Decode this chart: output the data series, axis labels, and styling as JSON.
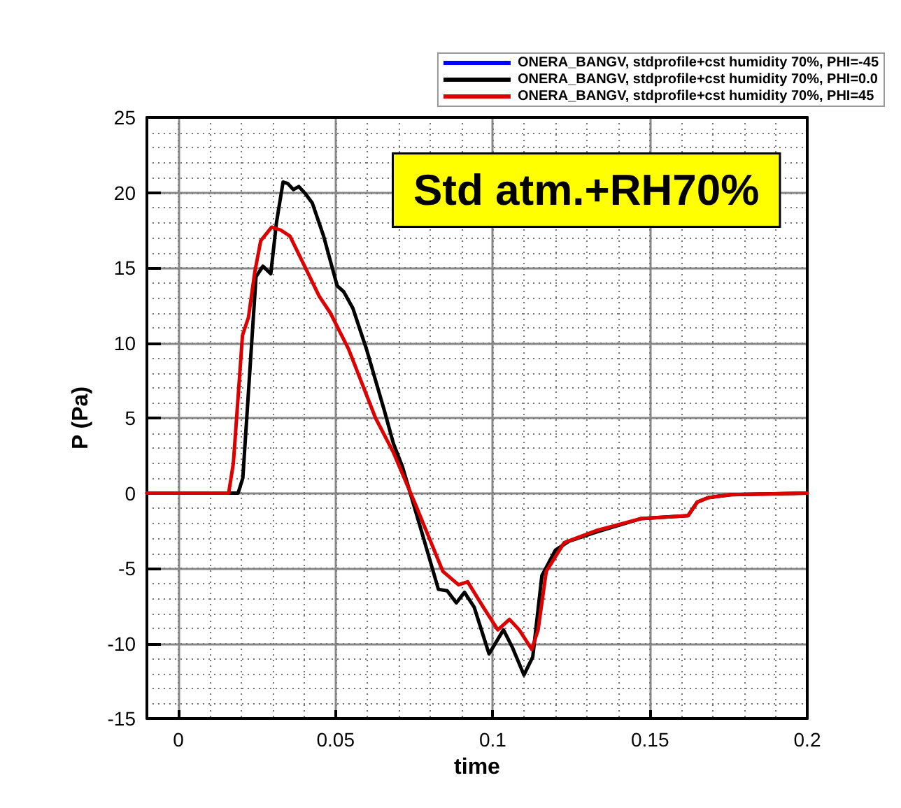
{
  "chart_data": {
    "type": "line",
    "xlabel": "time",
    "ylabel": "P (Pa)",
    "annotations": [
      "Std atm.+RH70%"
    ],
    "xlim": [
      -0.01,
      0.2
    ],
    "xticks": [
      0,
      0.05,
      0.1,
      0.15,
      0.2
    ],
    "ylim": [
      -15,
      25
    ],
    "yticks": [
      -15,
      -10,
      -5,
      0,
      5,
      10,
      15,
      20,
      25
    ],
    "grid": true,
    "legend": "top right",
    "marker": "none",
    "line_style": "solid",
    "series": [
      {
        "name": "ONERA_BANGV, stdprofile+cst humidity 70%, PHI=-45",
        "color": "#0000ff"
      },
      {
        "name": "ONERA_BANGV, stdprofile+cst humidity 70%, PHI=0.0",
        "color": "#000000",
        "x": [
          -0.01,
          0.019,
          0.0205,
          0.0247,
          0.0269,
          0.0294,
          0.0312,
          0.0333,
          0.0348,
          0.0366,
          0.0383,
          0.0405,
          0.0426,
          0.0462,
          0.0505,
          0.0526,
          0.0555,
          0.0598,
          0.0655,
          0.0684,
          0.0712,
          0.077,
          0.0827,
          0.0855,
          0.0884,
          0.091,
          0.0941,
          0.0988,
          0.1034,
          0.1063,
          0.1099,
          0.1127,
          0.1156,
          0.1199,
          0.1242,
          0.1328,
          0.147,
          0.1621,
          0.165,
          0.1685,
          0.1757,
          0.2
        ],
        "values": [
          0,
          0,
          1,
          14.4,
          15.1,
          14.6,
          18.0,
          20.7,
          20.6,
          20.2,
          20.4,
          19.9,
          19.3,
          17.1,
          13.8,
          13.4,
          12.3,
          9.6,
          5.5,
          3.3,
          1.8,
          -2.3,
          -6.4,
          -6.5,
          -7.3,
          -6.6,
          -7.6,
          -10.7,
          -9.1,
          -10.3,
          -12.1,
          -10.9,
          -5.5,
          -3.8,
          -3.2,
          -2.6,
          -1.7,
          -1.5,
          -0.6,
          -0.3,
          -0.1,
          0
        ]
      },
      {
        "name": "ONERA_BANGV, stdprofile+cst humidity 70%, PHI=45",
        "color": "#dd0000",
        "x": [
          -0.01,
          0.016,
          0.0175,
          0.0204,
          0.0223,
          0.0243,
          0.0262,
          0.0297,
          0.0326,
          0.0355,
          0.0397,
          0.0448,
          0.0483,
          0.0541,
          0.0627,
          0.0684,
          0.0755,
          0.0841,
          0.0891,
          0.092,
          0.097,
          0.1016,
          0.1053,
          0.1084,
          0.1124,
          0.1144,
          0.117,
          0.1227,
          0.1328,
          0.147,
          0.1621,
          0.165,
          0.1685,
          0.1757,
          0.2
        ],
        "values": [
          0,
          0,
          2,
          10.5,
          11.7,
          14.7,
          16.8,
          17.7,
          17.5,
          17.1,
          15.3,
          13.1,
          12.0,
          9.6,
          5.0,
          2.7,
          -0.8,
          -5.2,
          -6.1,
          -5.9,
          -7.6,
          -9.1,
          -8.4,
          -9.1,
          -10.4,
          -9.1,
          -5.2,
          -3.3,
          -2.5,
          -1.7,
          -1.5,
          -0.6,
          -0.3,
          -0.1,
          0
        ]
      }
    ]
  }
}
